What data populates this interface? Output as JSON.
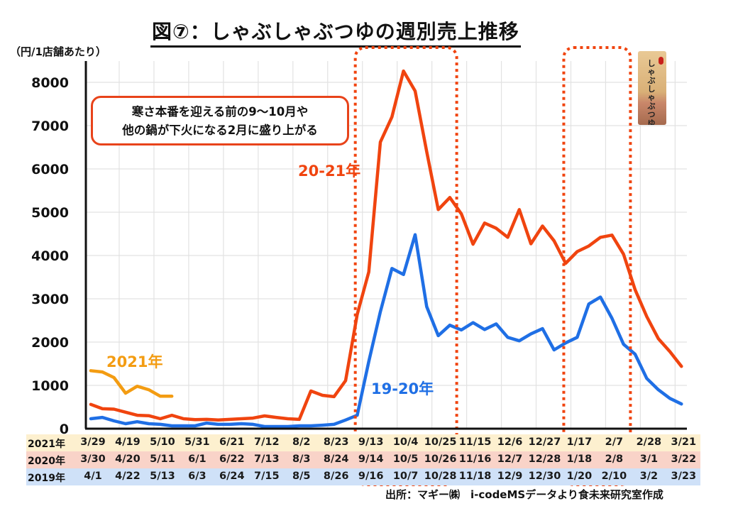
{
  "title": "図⑦：しゃぶしゃぶつゆの週別売上推移",
  "unit_label": "（円/1店舗あたり）",
  "callout": {
    "line1": "寒さ本番を迎える前の9～10月や",
    "line2": "他の鍋が下火になる2月に盛り上がる"
  },
  "product_image": {
    "label": "しゃぶしゃぶつゆ"
  },
  "source": "出所：マギー㈱　i-codeMSデータより食未来研究室作成",
  "chart_data": {
    "type": "line",
    "title": "図⑦：しゃぶしゃぶつゆの週別売上推移",
    "ylabel": "（円/1店舗あたり）",
    "xlabel": "",
    "ylim": [
      0,
      8000
    ],
    "yticks": [
      "0",
      "1000",
      "2000",
      "3000",
      "4000",
      "5000",
      "6000",
      "7000",
      "8000"
    ],
    "grid": true,
    "weeks": 52,
    "x_axis_table": [
      {
        "year": "2021年",
        "labels": [
          "3/29",
          "4/19",
          "5/10",
          "5/31",
          "6/21",
          "7/12",
          "8/2",
          "8/23",
          "9/13",
          "10/4",
          "10/25",
          "11/15",
          "12/6",
          "12/27",
          "1/17",
          "2/7",
          "2/28",
          "3/21"
        ]
      },
      {
        "year": "2020年",
        "labels": [
          "3/30",
          "4/20",
          "5/11",
          "6/1",
          "6/22",
          "7/13",
          "8/3",
          "8/24",
          "9/14",
          "10/5",
          "10/26",
          "11/16",
          "12/7",
          "12/28",
          "1/18",
          "2/8",
          "3/1",
          "3/22"
        ]
      },
      {
        "year": "2019年",
        "labels": [
          "4/1",
          "4/22",
          "5/13",
          "6/3",
          "6/24",
          "7/15",
          "8/5",
          "8/26",
          "9/16",
          "10/7",
          "10/28",
          "11/18",
          "12/9",
          "12/30",
          "1/20",
          "2/10",
          "3/2",
          "3/23"
        ]
      }
    ],
    "series": [
      {
        "name": "20-21年",
        "color": "#f0440f",
        "values": [
          560,
          460,
          450,
          380,
          310,
          300,
          230,
          310,
          230,
          210,
          215,
          200,
          215,
          230,
          245,
          295,
          260,
          230,
          215,
          870,
          770,
          740,
          1110,
          2640,
          3620,
          6620,
          7200,
          8260,
          7800,
          6400,
          5060,
          5340,
          4960,
          4260,
          4750,
          4630,
          4420,
          5060,
          4270,
          4680,
          4340,
          3820,
          4090,
          4220,
          4420,
          4470,
          4030,
          3210,
          2590,
          2080,
          1780,
          1440
        ]
      },
      {
        "name": "19-20年",
        "color": "#1f6fe5",
        "values": [
          230,
          260,
          180,
          115,
          160,
          115,
          100,
          65,
          65,
          65,
          130,
          100,
          100,
          115,
          100,
          50,
          50,
          50,
          65,
          65,
          80,
          100,
          200,
          310,
          1550,
          2700,
          3700,
          3560,
          4480,
          2820,
          2150,
          2390,
          2280,
          2450,
          2290,
          2420,
          2110,
          2030,
          2190,
          2310,
          1820,
          1980,
          2110,
          2880,
          3040,
          2550,
          1950,
          1720,
          1160,
          900,
          700,
          570
        ]
      },
      {
        "name": "2021年",
        "color": "#f39c12",
        "values": [
          1340,
          1310,
          1180,
          820,
          980,
          900,
          750,
          750
        ]
      }
    ],
    "highlight_boxes": [
      {
        "from": "9/13",
        "to": "10/25",
        "style": "dotted",
        "color": "#f0440f"
      },
      {
        "from": "1/17",
        "to": "2/7",
        "style": "dotted",
        "color": "#f0440f"
      }
    ]
  }
}
